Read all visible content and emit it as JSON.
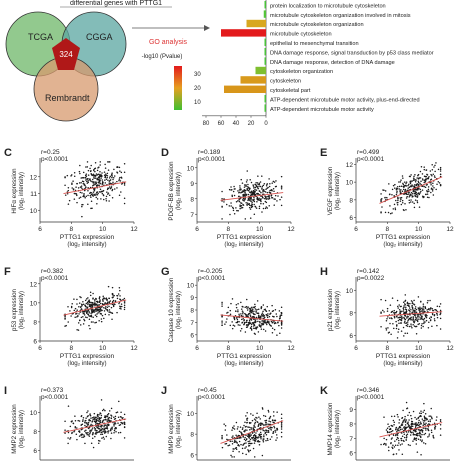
{
  "header": {
    "title": "differential genes with PTTG1"
  },
  "venn": {
    "circles": [
      {
        "label": "TCGA",
        "color": "#7fbf7a"
      },
      {
        "label": "CGGA",
        "color": "#5aa6a0"
      },
      {
        "label": "Rembrandt",
        "color": "#d79a6e"
      }
    ],
    "center_count": "324",
    "center_color": "#b01818"
  },
  "go_analysis": {
    "label": "GO analysis",
    "legend_title": "-log10 (Pvalue)",
    "legend_ticks": [
      "30",
      "20",
      "10"
    ],
    "x_ticks": [
      "80",
      "60",
      "40",
      "20",
      "0"
    ],
    "terms": [
      {
        "name": "protein localization to microtubule cytoskeleton",
        "value": 2,
        "color": "#49c23a"
      },
      {
        "name": "microtubule cytoskeleton organization involved in mitosis",
        "value": 3,
        "color": "#55c43a"
      },
      {
        "name": "microtubule cytoskeleton organization",
        "value": 26,
        "color": "#d8a820"
      },
      {
        "name": "microtubule cytoskeleton",
        "value": 60,
        "color": "#e31a1c"
      },
      {
        "name": "epithelial to mesenchymal transition",
        "value": 2,
        "color": "#49c23a"
      },
      {
        "name": "DNA damage response, signal transduction by p53 class mediator",
        "value": 2,
        "color": "#49c23a"
      },
      {
        "name": "DNA damage response, detection of DNA damage",
        "value": 2,
        "color": "#49c23a"
      },
      {
        "name": "cytoskeleton organization",
        "value": 14,
        "color": "#7fbf30"
      },
      {
        "name": "cytoskeleton",
        "value": 34,
        "color": "#d89a1c"
      },
      {
        "name": "cytoskeletal part",
        "value": 56,
        "color": "#d8961a"
      },
      {
        "name": "ATP-dependent microtubule motor activity, plus-end-directed",
        "value": 2,
        "color": "#49c23a"
      },
      {
        "name": "ATP-dependent microtubule motor activity",
        "value": 2,
        "color": "#49c23a"
      }
    ]
  },
  "chart_data": [
    {
      "type": "scatter",
      "panel": "C",
      "r": "r=0.25",
      "p": "p<0.0001",
      "ylabel": "HIFα expression",
      "ylabel2": "(log₂ intensity)",
      "xlabel": "PTTG1 expression",
      "xlabel2": "(log₂ intensity)",
      "yticks": [
        "12",
        "11",
        "10"
      ],
      "ylim": [
        9.3,
        13
      ],
      "xticks": [
        "6",
        "8",
        "10",
        "12"
      ],
      "xlim": [
        6,
        12
      ],
      "fit": [
        [
          7.5,
          11.0
        ],
        [
          11.5,
          11.7
        ]
      ],
      "cloud": {
        "xmean": 9.6,
        "xsd": 0.9,
        "ymean": 11.6,
        "ysd": 0.55,
        "slope": 0.12,
        "n": 330
      }
    },
    {
      "type": "scatter",
      "panel": "D",
      "r": "r=0.189",
      "p": "p<0.0001",
      "ylabel": "PDGF-BB expression",
      "ylabel2": "(log₂ intensity)",
      "yticks": [
        "10",
        "9",
        "8",
        "7"
      ],
      "ylim": [
        6.5,
        10.5
      ],
      "xticks": [
        "6",
        "8",
        "10",
        "12"
      ],
      "xlim": [
        6,
        12
      ],
      "xlabel": "PTTG1 expression",
      "xlabel2": "(log₂ intensity)",
      "fit": [
        [
          7.5,
          7.9
        ],
        [
          11.5,
          8.4
        ]
      ],
      "cloud": {
        "xmean": 9.6,
        "xsd": 0.9,
        "ymean": 8.2,
        "ysd": 0.5,
        "slope": 0.12,
        "n": 330
      }
    },
    {
      "type": "scatter",
      "panel": "E",
      "r": "r=0.499",
      "p": "p<0.0001",
      "ylabel": "VEGF expression",
      "ylabel2": "(log₂ intensity)",
      "yticks": [
        "12",
        "10",
        "8",
        "6"
      ],
      "ylim": [
        5.5,
        12.5
      ],
      "xticks": [
        "6",
        "8",
        "10",
        "12"
      ],
      "xlim": [
        6,
        12
      ],
      "xlabel": "PTTG1 expression",
      "xlabel2": "(log₂ intensity)",
      "fit": [
        [
          7.5,
          7.6
        ],
        [
          11.5,
          10.6
        ]
      ],
      "cloud": {
        "xmean": 9.6,
        "xsd": 0.9,
        "ymean": 9.2,
        "ysd": 0.9,
        "slope": 0.75,
        "n": 330
      }
    },
    {
      "type": "scatter",
      "panel": "F",
      "r": "r=0.382",
      "p": "p<0.0001",
      "ylabel": "p53 expression",
      "ylabel2": "(log₂ intensity)",
      "yticks": [
        "12",
        "10",
        "8",
        "6"
      ],
      "ylim": [
        6,
        12.5
      ],
      "xticks": [
        "6",
        "8",
        "10",
        "12"
      ],
      "xlim": [
        6,
        12
      ],
      "xlabel": "PTTG1 expression",
      "xlabel2": "(log₂ intensity)",
      "fit": [
        [
          7.5,
          8.7
        ],
        [
          11.5,
          10.3
        ]
      ],
      "cloud": {
        "xmean": 9.6,
        "xsd": 0.9,
        "ymean": 9.5,
        "ysd": 0.65,
        "slope": 0.4,
        "n": 330
      }
    },
    {
      "type": "scatter",
      "panel": "G",
      "r": "r=-0.205",
      "p": "p<0.0001",
      "ylabel": "Caspase 10 expression",
      "ylabel2": "(log₂ intensity)",
      "yticks": [
        "10",
        "9",
        "8",
        "7",
        "6"
      ],
      "ylim": [
        5.5,
        10.5
      ],
      "xticks": [
        "6",
        "8",
        "10",
        "12"
      ],
      "xlim": [
        6,
        12
      ],
      "xlabel": "PTTG1 expression",
      "xlabel2": "(log₂ intensity)",
      "fit": [
        [
          7.5,
          7.6
        ],
        [
          11.5,
          7.1
        ]
      ],
      "cloud": {
        "xmean": 9.6,
        "xsd": 0.9,
        "ymean": 7.35,
        "ysd": 0.55,
        "slope": -0.13,
        "n": 330
      }
    },
    {
      "type": "scatter",
      "panel": "H",
      "r": "r=0.142",
      "p": "p=0.0022",
      "ylabel": "p21 expression",
      "ylabel2": "(log₂ intensity)",
      "yticks": [
        "10",
        "8",
        "6"
      ],
      "ylim": [
        5.5,
        11
      ],
      "xticks": [
        "6",
        "8",
        "10",
        "12"
      ],
      "xlim": [
        6,
        12
      ],
      "xlabel": "PTTG1 expression",
      "xlabel2": "(log₂ intensity)",
      "fit": [
        [
          7.5,
          7.7
        ],
        [
          11.5,
          8.1
        ]
      ],
      "cloud": {
        "xmean": 9.6,
        "xsd": 0.9,
        "ymean": 7.9,
        "ysd": 0.7,
        "slope": 0.1,
        "n": 330
      }
    },
    {
      "type": "scatter",
      "panel": "I",
      "r": "r=0.373",
      "p": "p<0.0001",
      "ylabel": "MMP2 expression",
      "ylabel2": "(log₂ intensity)",
      "yticks": [
        "10",
        "8",
        "6"
      ],
      "ylim": [
        5,
        11.5
      ],
      "xticks": [],
      "xlim": [
        6,
        12
      ],
      "xlabel": "",
      "xlabel2": "",
      "fit": [
        [
          7.5,
          7.9
        ],
        [
          11.5,
          9.3
        ]
      ],
      "cloud": {
        "xmean": 9.6,
        "xsd": 0.9,
        "ymean": 8.6,
        "ysd": 0.75,
        "slope": 0.35,
        "n": 330
      }
    },
    {
      "type": "scatter",
      "panel": "J",
      "r": "r=0.45",
      "p": "p<0.0001",
      "ylabel": "MMP9 expression",
      "ylabel2": "(log₂ intensity)",
      "yticks": [
        "10",
        "8",
        "6"
      ],
      "ylim": [
        5.5,
        11.5
      ],
      "xticks": [],
      "xlim": [
        6,
        12
      ],
      "xlabel": "",
      "xlabel2": "",
      "fit": [
        [
          7.5,
          7.1
        ],
        [
          11.5,
          9.3
        ]
      ],
      "cloud": {
        "xmean": 9.6,
        "xsd": 0.9,
        "ymean": 8.2,
        "ysd": 0.85,
        "slope": 0.55,
        "n": 330
      }
    },
    {
      "type": "scatter",
      "panel": "K",
      "r": "r=0.346",
      "p": "p<0.0001",
      "ylabel": "MMP14 expression",
      "ylabel2": "(log₂ intensity)",
      "yticks": [
        "9",
        "8",
        "7",
        "6"
      ],
      "ylim": [
        5.5,
        9.8
      ],
      "xticks": [],
      "xlim": [
        6,
        12
      ],
      "xlabel": "",
      "xlabel2": "",
      "fit": [
        [
          7.5,
          7.1
        ],
        [
          11.5,
          8.1
        ]
      ],
      "cloud": {
        "xmean": 9.6,
        "xsd": 0.9,
        "ymean": 7.6,
        "ysd": 0.6,
        "slope": 0.25,
        "n": 330
      }
    }
  ]
}
